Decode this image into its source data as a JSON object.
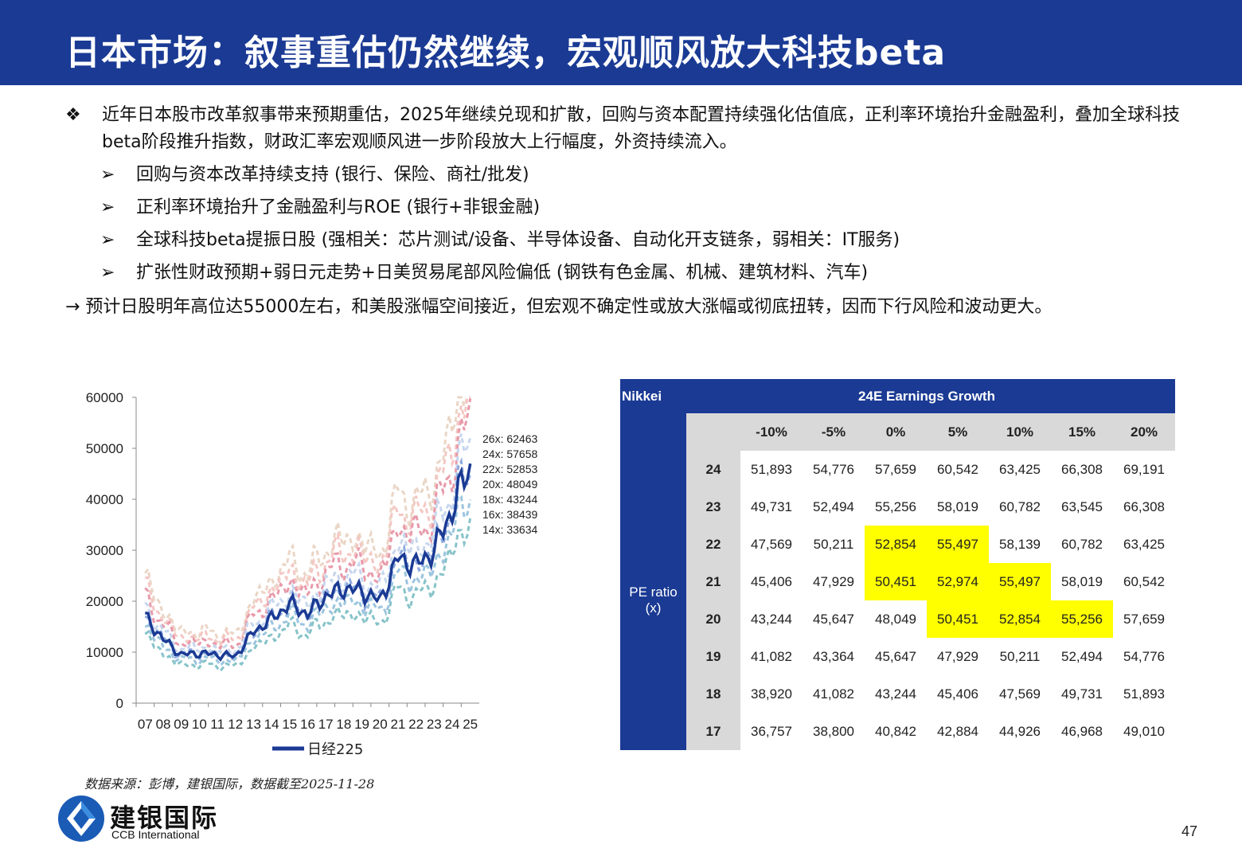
{
  "title": "日本市场：叙事重估仍然继续，宏观顺风放大科技beta",
  "bullet_marker": "❖",
  "sub_marker": "➢",
  "main_bullet": "近年日本股市改革叙事带来预期重估，2025年继续兑现和扩散，回购与资本配置持续强化估值底，正利率环境抬升金融盈利，叠加全球科技beta阶段推升指数，财政汇率宏观顺风进一步阶段放大上行幅度，外资持续流入。",
  "sub_bullets": [
    "回购与资本改革持续支持 (银行、保险、商社/批发)",
    "正利率环境抬升了金融盈利与ROE (银行+非银金融)",
    "全球科技beta提振日股 (强相关：芯片测试/设备、半导体设备、自动化开支链条，弱相关：IT服务)",
    "扩张性财政预期+弱日元走势+日美贸易尾部风险偏低 (钢铁有色金属、机械、建筑材料、汽车)"
  ],
  "conclusion": "→ 预计日股明年高位达55000左右，和美股涨幅空间接近，但宏观不确定性或放大涨幅或彻底扭转，因而下行风险和波动更大。",
  "source_note": "数据来源：彭博，建银国际，数据截至2025-11-28",
  "logo": {
    "cn": "建银国际",
    "en": "CCB International"
  },
  "page_number": "47",
  "colors": {
    "brand_blue": "#1a3a94",
    "highlight": "#ffff00",
    "header_gray": "#d9d9d9"
  },
  "chart_data": {
    "type": "line",
    "xlabel": "",
    "ylabel": "",
    "ylim": [
      0,
      60000
    ],
    "yticks": [
      "0",
      "10000",
      "20000",
      "30000",
      "40000",
      "50000",
      "60000"
    ],
    "categories": [
      "07",
      "08",
      "09",
      "10",
      "11",
      "12",
      "13",
      "14",
      "15",
      "16",
      "17",
      "18",
      "19",
      "20",
      "21",
      "22",
      "23",
      "24",
      "25"
    ],
    "legend": "日经225",
    "legend_position": "bottom",
    "grid": false,
    "series": [
      {
        "name": "日经225",
        "values": [
          17000,
          12500,
          9500,
          9800,
          9500,
          9200,
          14000,
          16500,
          19500,
          17500,
          21000,
          22500,
          22000,
          20000,
          28500,
          27000,
          30000,
          38000,
          47000
        ]
      }
    ],
    "pe_bands": [
      {
        "label": "26x: 62463",
        "color": "#ead6c6"
      },
      {
        "label": "24x: 57658",
        "color": "#f4c7c3"
      },
      {
        "label": "22x: 52853",
        "color": "#e89aaa"
      },
      {
        "label": "20x: 48049",
        "color": "#c7d6ee"
      },
      {
        "label": "18x: 43244",
        "color": "#8eaadf"
      },
      {
        "label": "16x: 38439",
        "color": "#9bc4de"
      },
      {
        "label": "14x: 33634",
        "color": "#86c3c9"
      }
    ],
    "pe_band_multiples": [
      26,
      24,
      22,
      20,
      18,
      16,
      14
    ]
  },
  "table": {
    "corner": "Nikkei",
    "header": "24E Earnings Growth",
    "side_label": "PE ratio\n(x)",
    "columns": [
      "-10%",
      "-5%",
      "0%",
      "5%",
      "10%",
      "15%",
      "20%"
    ],
    "rows": [
      {
        "pe": "24",
        "values": [
          "51,893",
          "54,776",
          "57,659",
          "60,542",
          "63,425",
          "66,308",
          "69,191"
        ],
        "highlight": []
      },
      {
        "pe": "23",
        "values": [
          "49,731",
          "52,494",
          "55,256",
          "58,019",
          "60,782",
          "63,545",
          "66,308"
        ],
        "highlight": []
      },
      {
        "pe": "22",
        "values": [
          "47,569",
          "50,211",
          "52,854",
          "55,497",
          "58,139",
          "60,782",
          "63,425"
        ],
        "highlight": [
          2,
          3
        ]
      },
      {
        "pe": "21",
        "values": [
          "45,406",
          "47,929",
          "50,451",
          "52,974",
          "55,497",
          "58,019",
          "60,542"
        ],
        "highlight": [
          2,
          3,
          4
        ]
      },
      {
        "pe": "20",
        "values": [
          "43,244",
          "45,647",
          "48,049",
          "50,451",
          "52,854",
          "55,256",
          "57,659"
        ],
        "highlight": [
          3,
          4,
          5
        ]
      },
      {
        "pe": "19",
        "values": [
          "41,082",
          "43,364",
          "45,647",
          "47,929",
          "50,211",
          "52,494",
          "54,776"
        ],
        "highlight": []
      },
      {
        "pe": "18",
        "values": [
          "38,920",
          "41,082",
          "43,244",
          "45,406",
          "47,569",
          "49,731",
          "51,893"
        ],
        "highlight": []
      },
      {
        "pe": "17",
        "values": [
          "36,757",
          "38,800",
          "40,842",
          "42,884",
          "44,926",
          "46,968",
          "49,010"
        ],
        "highlight": []
      }
    ]
  }
}
